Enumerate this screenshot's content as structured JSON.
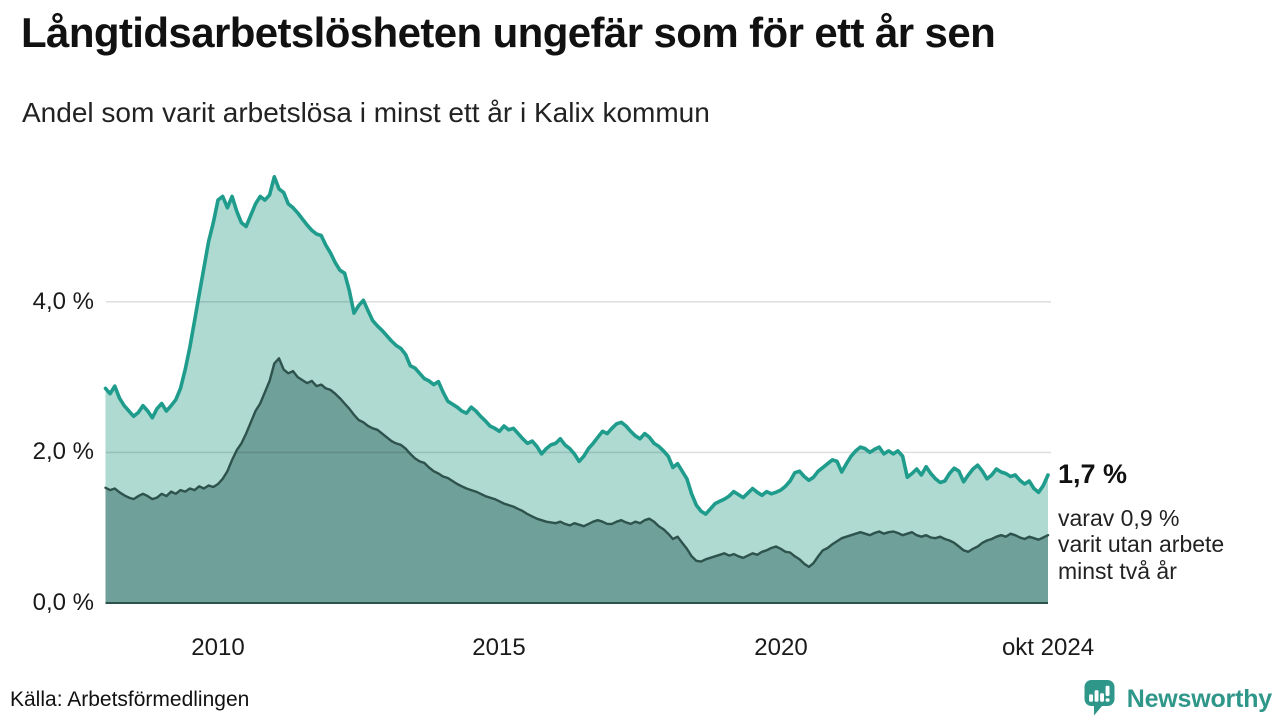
{
  "header": {
    "title": "Långtidsarbetslösheten ungefär som för ett år sen",
    "subtitle": "Andel som varit arbetslösa i minst ett år i Kalix kommun"
  },
  "chart_data": {
    "type": "area",
    "title": "Långtidsarbetslösheten ungefär som för ett år sen",
    "subtitle": "Andel som varit arbetslösa i minst ett år i Kalix kommun",
    "unit": "%",
    "interval": "monthly",
    "x_start": "2008-01",
    "x_end": "2024-10",
    "y_axis": {
      "ticks": [
        {
          "label": "0,0 %",
          "value": 0
        },
        {
          "label": "2,0 %",
          "value": 2
        },
        {
          "label": "4,0 %",
          "value": 4
        }
      ],
      "gridline_values": [
        2,
        4
      ],
      "ylim": [
        0,
        5.8
      ],
      "grid": true
    },
    "x_axis": {
      "ticks": [
        {
          "label": "2010",
          "month_index": 24
        },
        {
          "label": "2015",
          "month_index": 84
        },
        {
          "label": "2020",
          "month_index": 144
        },
        {
          "label": "okt 2024",
          "month_index": 201
        }
      ]
    },
    "legend": "none",
    "series": [
      {
        "name": "Arbetslösa minst ett år",
        "line_color": "#1f9c8c",
        "fill_color": "#aedad2",
        "last_value_label": "1,7 %",
        "values": [
          2.85,
          2.78,
          2.88,
          2.72,
          2.62,
          2.55,
          2.48,
          2.53,
          2.62,
          2.55,
          2.46,
          2.58,
          2.65,
          2.55,
          2.62,
          2.7,
          2.85,
          3.1,
          3.4,
          3.75,
          4.1,
          4.45,
          4.8,
          5.05,
          5.35,
          5.4,
          5.25,
          5.4,
          5.2,
          5.05,
          5.0,
          5.15,
          5.3,
          5.4,
          5.35,
          5.42,
          5.66,
          5.5,
          5.45,
          5.3,
          5.25,
          5.18,
          5.1,
          5.02,
          4.95,
          4.9,
          4.88,
          4.75,
          4.65,
          4.52,
          4.42,
          4.38,
          4.15,
          3.85,
          3.95,
          4.02,
          3.88,
          3.75,
          3.68,
          3.62,
          3.55,
          3.48,
          3.42,
          3.38,
          3.3,
          3.15,
          3.12,
          3.05,
          2.98,
          2.95,
          2.9,
          2.94,
          2.8,
          2.68,
          2.64,
          2.6,
          2.55,
          2.52,
          2.6,
          2.55,
          2.48,
          2.42,
          2.35,
          2.32,
          2.28,
          2.35,
          2.3,
          2.32,
          2.25,
          2.18,
          2.12,
          2.15,
          2.08,
          1.98,
          2.05,
          2.1,
          2.12,
          2.18,
          2.1,
          2.05,
          1.98,
          1.88,
          1.95,
          2.05,
          2.12,
          2.2,
          2.28,
          2.25,
          2.32,
          2.38,
          2.4,
          2.35,
          2.28,
          2.22,
          2.18,
          2.25,
          2.2,
          2.12,
          2.08,
          2.02,
          1.95,
          1.8,
          1.85,
          1.75,
          1.65,
          1.45,
          1.3,
          1.22,
          1.18,
          1.25,
          1.32,
          1.35,
          1.38,
          1.42,
          1.48,
          1.44,
          1.4,
          1.46,
          1.52,
          1.47,
          1.43,
          1.48,
          1.45,
          1.47,
          1.5,
          1.55,
          1.62,
          1.73,
          1.75,
          1.68,
          1.63,
          1.67,
          1.75,
          1.8,
          1.85,
          1.9,
          1.88,
          1.74,
          1.85,
          1.95,
          2.02,
          2.07,
          2.05,
          2.0,
          2.04,
          2.07,
          1.98,
          2.02,
          1.98,
          2.02,
          1.95,
          1.67,
          1.72,
          1.78,
          1.7,
          1.81,
          1.72,
          1.65,
          1.6,
          1.62,
          1.72,
          1.79,
          1.75,
          1.61,
          1.7,
          1.78,
          1.83,
          1.75,
          1.65,
          1.7,
          1.78,
          1.74,
          1.72,
          1.68,
          1.7,
          1.63,
          1.58,
          1.62,
          1.52,
          1.47,
          1.56,
          1.7
        ]
      },
      {
        "name": "varav arbetslösa minst två år",
        "line_color": "#2e524c",
        "fill_color": "#70a09a",
        "last_value_label": "0,9 %",
        "values": [
          1.53,
          1.5,
          1.52,
          1.47,
          1.43,
          1.4,
          1.38,
          1.42,
          1.45,
          1.42,
          1.38,
          1.4,
          1.45,
          1.42,
          1.48,
          1.45,
          1.5,
          1.48,
          1.52,
          1.5,
          1.55,
          1.52,
          1.56,
          1.54,
          1.58,
          1.65,
          1.75,
          1.9,
          2.03,
          2.12,
          2.25,
          2.4,
          2.55,
          2.65,
          2.8,
          2.95,
          3.18,
          3.25,
          3.1,
          3.05,
          3.08,
          3.0,
          2.96,
          2.92,
          2.95,
          2.88,
          2.9,
          2.85,
          2.83,
          2.78,
          2.72,
          2.65,
          2.58,
          2.5,
          2.43,
          2.4,
          2.35,
          2.32,
          2.3,
          2.25,
          2.2,
          2.15,
          2.12,
          2.1,
          2.05,
          1.98,
          1.92,
          1.88,
          1.86,
          1.8,
          1.75,
          1.72,
          1.68,
          1.66,
          1.62,
          1.58,
          1.55,
          1.52,
          1.5,
          1.48,
          1.45,
          1.42,
          1.4,
          1.38,
          1.35,
          1.32,
          1.3,
          1.28,
          1.25,
          1.22,
          1.18,
          1.15,
          1.12,
          1.1,
          1.08,
          1.07,
          1.06,
          1.08,
          1.05,
          1.03,
          1.06,
          1.04,
          1.02,
          1.05,
          1.08,
          1.1,
          1.08,
          1.05,
          1.05,
          1.08,
          1.1,
          1.07,
          1.05,
          1.08,
          1.06,
          1.1,
          1.12,
          1.08,
          1.02,
          0.98,
          0.92,
          0.85,
          0.88,
          0.8,
          0.72,
          0.62,
          0.56,
          0.55,
          0.58,
          0.6,
          0.62,
          0.64,
          0.66,
          0.63,
          0.65,
          0.62,
          0.6,
          0.63,
          0.66,
          0.64,
          0.68,
          0.7,
          0.73,
          0.75,
          0.72,
          0.68,
          0.67,
          0.62,
          0.58,
          0.52,
          0.48,
          0.53,
          0.62,
          0.7,
          0.73,
          0.78,
          0.82,
          0.86,
          0.88,
          0.9,
          0.92,
          0.94,
          0.92,
          0.9,
          0.93,
          0.95,
          0.92,
          0.94,
          0.95,
          0.93,
          0.9,
          0.92,
          0.94,
          0.9,
          0.88,
          0.9,
          0.87,
          0.86,
          0.88,
          0.85,
          0.83,
          0.8,
          0.75,
          0.7,
          0.68,
          0.72,
          0.75,
          0.8,
          0.83,
          0.85,
          0.88,
          0.9,
          0.88,
          0.92,
          0.9,
          0.87,
          0.85,
          0.88,
          0.86,
          0.84,
          0.87,
          0.9
        ]
      }
    ],
    "annotation": {
      "headline": "1,7 %",
      "lines": [
        "varav 0,9 %",
        "varit utan arbete",
        "minst två år"
      ]
    },
    "colors": {
      "grid": "rgba(0,0,0,0.12)",
      "baseline": "#2e524c",
      "brand_teal": "#2f978a"
    }
  },
  "footer": {
    "source": "Källa: Arbetsförmedlingen",
    "brand": "Newsworthy"
  }
}
